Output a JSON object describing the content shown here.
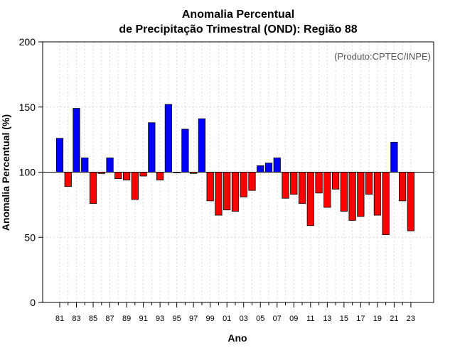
{
  "chart_data": {
    "type": "bar",
    "title_line1": "Anomalia Percentual",
    "title_line2": "de Precipitação Trimestral (OND): Região 88",
    "xlabel": "Ano",
    "ylabel": "Anomalia Percentual (%)",
    "credit": "(Produto:CPTEC/INPE)",
    "baseline": 100,
    "ylim": [
      0,
      200
    ],
    "yticks": [
      "0",
      "50",
      "100",
      "150",
      "200"
    ],
    "tick_labels": [
      "81",
      "83",
      "85",
      "87",
      "89",
      "91",
      "93",
      "95",
      "97",
      "99",
      "01",
      "03",
      "05",
      "07",
      "09",
      "11",
      "13",
      "15",
      "17",
      "19",
      "21",
      "23"
    ],
    "categories": [
      "81",
      "82",
      "83",
      "84",
      "85",
      "86",
      "87",
      "88",
      "89",
      "90",
      "91",
      "92",
      "93",
      "94",
      "95",
      "96",
      "97",
      "98",
      "99",
      "00",
      "01",
      "02",
      "03",
      "04",
      "05",
      "06",
      "07",
      "08",
      "09",
      "10",
      "11",
      "12",
      "13",
      "14",
      "15",
      "16",
      "17",
      "18",
      "19",
      "20",
      "21",
      "22",
      "23"
    ],
    "values": [
      126,
      89,
      149,
      111,
      76,
      99,
      111,
      95,
      94,
      79,
      97,
      138,
      94,
      152,
      100,
      133,
      99,
      141,
      78,
      67,
      71,
      70,
      81,
      86,
      105,
      107,
      111,
      80,
      83,
      76,
      59,
      84,
      73,
      87,
      70,
      63,
      66,
      83,
      67,
      52,
      123,
      78,
      55
    ],
    "above_color": "#0000ff",
    "below_color": "#ff0000"
  }
}
